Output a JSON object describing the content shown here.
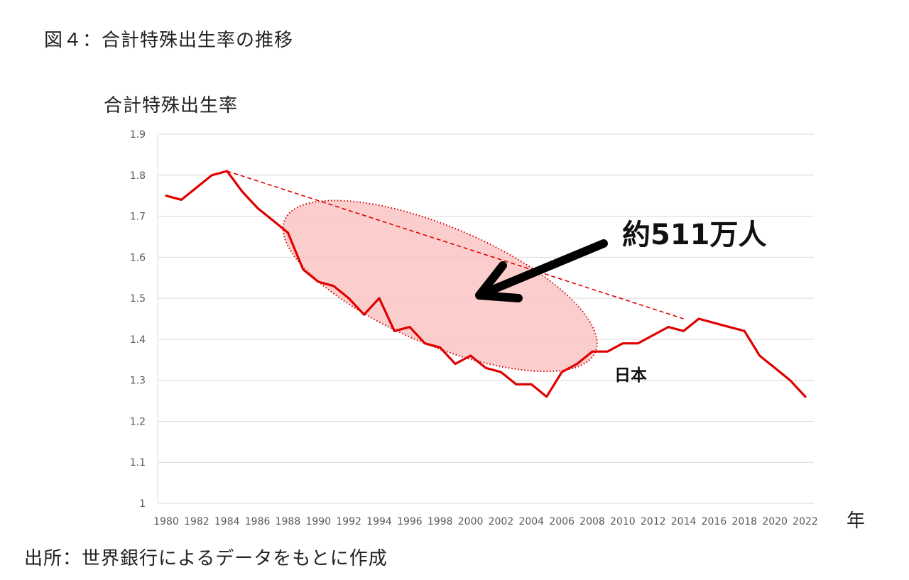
{
  "figure_title": "図４：合計特殊出生率の推移",
  "y_axis_title": "合計特殊出生率",
  "x_unit": "年",
  "source_note": "出所：世界銀行によるデータをもとに作成",
  "colors": {
    "series_line": "#e00000",
    "ellipse_fill": "#fcc4c4",
    "ellipse_border": "#cc0000",
    "grid": "#d9d9d9",
    "arrow": "#000000"
  },
  "chart_data": {
    "type": "line",
    "ylim": [
      1.0,
      1.9
    ],
    "y_ticks": [
      1.0,
      1.1,
      1.2,
      1.3,
      1.4,
      1.5,
      1.6,
      1.7,
      1.8,
      1.9
    ],
    "y_tick_labels": [
      "1",
      "1.1",
      "1.2",
      "1.3",
      "1.4",
      "1.5",
      "1.6",
      "1.7",
      "1.8",
      "1.9"
    ],
    "xlim": [
      1980,
      2022
    ],
    "x_tick_labels": [
      "1980",
      "1982",
      "1984",
      "1986",
      "1988",
      "1990",
      "1992",
      "1994",
      "1996",
      "1998",
      "2000",
      "2002",
      "2004",
      "2006",
      "2008",
      "2010",
      "2012",
      "2014",
      "2016",
      "2018",
      "2020",
      "2022"
    ],
    "grid": true,
    "series": [
      {
        "name": "日本",
        "x": [
          1980,
          1981,
          1982,
          1983,
          1984,
          1985,
          1986,
          1987,
          1988,
          1989,
          1990,
          1991,
          1992,
          1993,
          1994,
          1995,
          1996,
          1997,
          1998,
          1999,
          2000,
          2001,
          2002,
          2003,
          2004,
          2005,
          2006,
          2007,
          2008,
          2009,
          2010,
          2011,
          2012,
          2013,
          2014,
          2015,
          2016,
          2017,
          2018,
          2019,
          2020,
          2021,
          2022
        ],
        "y": [
          1.75,
          1.74,
          1.77,
          1.8,
          1.81,
          1.76,
          1.72,
          1.69,
          1.66,
          1.57,
          1.54,
          1.53,
          1.5,
          1.46,
          1.5,
          1.42,
          1.43,
          1.39,
          1.38,
          1.34,
          1.36,
          1.33,
          1.32,
          1.29,
          1.29,
          1.26,
          1.32,
          1.34,
          1.37,
          1.37,
          1.39,
          1.39,
          1.41,
          1.43,
          1.42,
          1.45,
          1.44,
          1.43,
          1.42,
          1.36,
          1.33,
          1.3,
          1.26
        ]
      }
    ],
    "trend_line": {
      "x": [
        1984,
        2014
      ],
      "y": [
        1.81,
        1.45
      ]
    },
    "annotations": {
      "gap_label": "約511万人",
      "series_label": "日本"
    }
  }
}
